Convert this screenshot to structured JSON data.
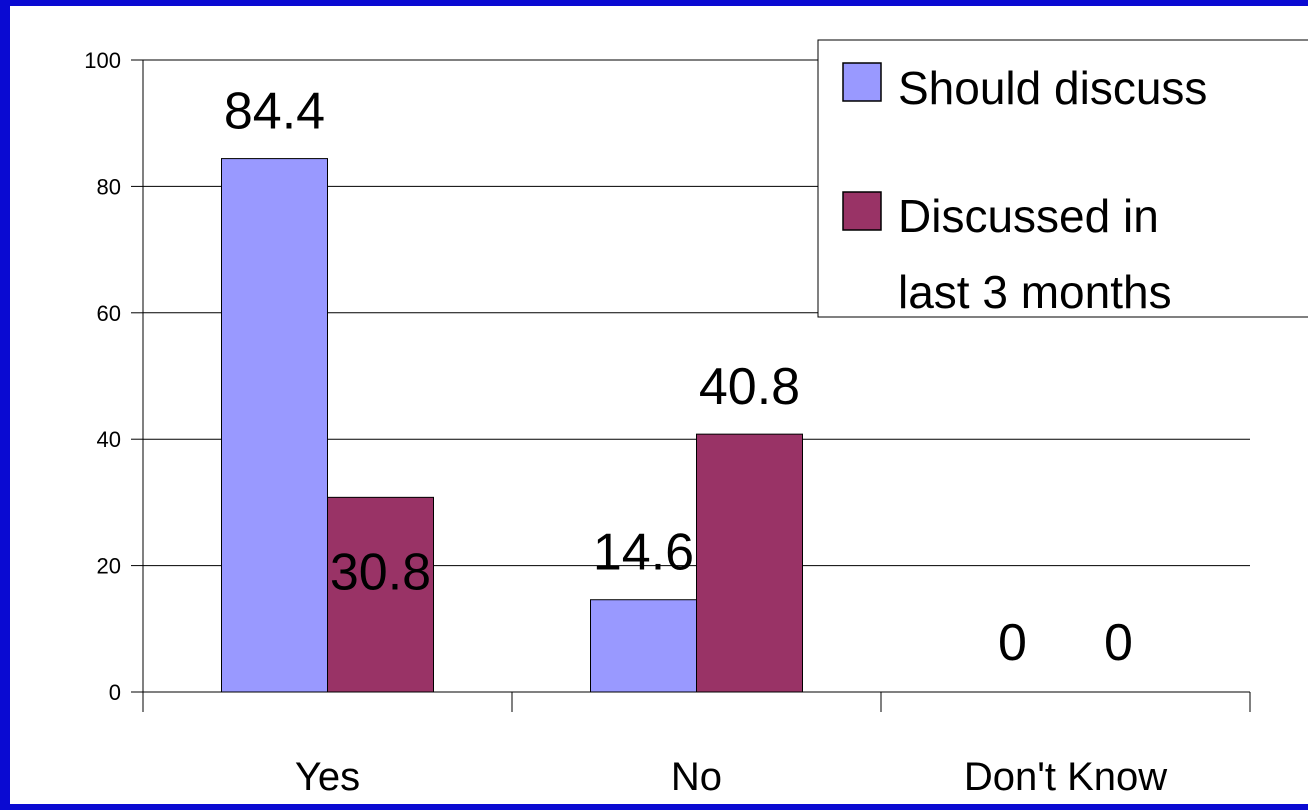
{
  "chart_data": {
    "type": "bar",
    "categories": [
      "Yes",
      "No",
      "Don't Know"
    ],
    "series": [
      {
        "name": "Should discuss",
        "values": [
          84.4,
          14.6,
          0
        ],
        "labels": [
          "84.4",
          "14.6",
          "0"
        ],
        "color": "#9999ff"
      },
      {
        "name": "Discussed in last 3 months",
        "name_lines": [
          "Discussed in",
          "last 3 months"
        ],
        "values": [
          30.8,
          40.8,
          0
        ],
        "labels": [
          "30.8",
          "40.8",
          "0"
        ],
        "color": "#993366"
      }
    ],
    "ylim": [
      0,
      100
    ],
    "yticks": [
      0,
      20,
      40,
      60,
      80,
      100
    ],
    "ytick_labels": [
      "0",
      "20",
      "40",
      "60",
      "80",
      "100"
    ],
    "grid": true,
    "legend": "top-right",
    "title": "",
    "xlabel": "",
    "ylabel": ""
  },
  "colors": {
    "frame": "#0a0ad2",
    "grid": "#000000"
  }
}
